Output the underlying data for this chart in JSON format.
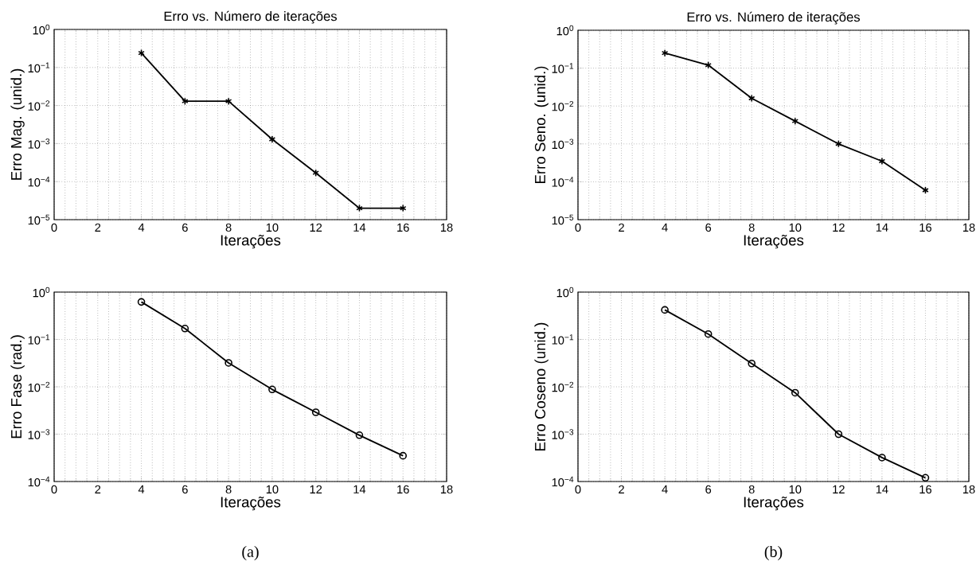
{
  "chart_data": [
    {
      "type": "line",
      "title": "Erro vs. Número de iterações",
      "xlabel": "Iterações",
      "ylabel": "Erro Mag. (unid.)",
      "x": [
        4,
        6,
        8,
        10,
        12,
        14,
        16
      ],
      "log": "y",
      "grid": true,
      "marker": "cross",
      "line_style": "solid",
      "series": [
        {
          "color": "#000000",
          "values": [
            0.24,
            0.013,
            0.013,
            0.0013,
            0.00017,
            2e-05,
            2e-05
          ]
        }
      ],
      "xlim": [
        0,
        18
      ],
      "xticks": [
        0,
        2,
        4,
        6,
        8,
        10,
        12,
        14,
        16,
        18
      ],
      "ylim": [
        1e-05,
        1
      ],
      "yticks": [
        {
          "value": 1e-05,
          "label": "10$^{−5}$"
        },
        {
          "value": 0.0001,
          "label": "10$^{−4}$"
        },
        {
          "value": 0.001,
          "label": "10$^{−3}$"
        },
        {
          "value": 0.01,
          "label": "10$^{−2}$"
        },
        {
          "value": 0.1,
          "label": "10$^{−1}$"
        },
        {
          "value": 1,
          "label": "10$^{0}$"
        }
      ]
    },
    {
      "type": "line",
      "title": "Erro vs. Número de iterações",
      "xlabel": "Iterações",
      "ylabel": "Erro Seno. (unid.)",
      "x": [
        4,
        6,
        8,
        10,
        12,
        14,
        16
      ],
      "log": "y",
      "grid": true,
      "marker": "cross",
      "line_style": "solid",
      "series": [
        {
          "color": "#000000",
          "values": [
            0.25,
            0.12,
            0.016,
            0.004,
            0.001,
            0.00035,
            6e-05
          ]
        }
      ],
      "xlim": [
        0,
        18
      ],
      "xticks": [
        0,
        2,
        4,
        6,
        8,
        10,
        12,
        14,
        16,
        18
      ],
      "ylim": [
        1e-05,
        1
      ],
      "yticks": [
        {
          "value": 1e-05,
          "label": "10$^{−5}$"
        },
        {
          "value": 0.0001,
          "label": "10$^{−4}$"
        },
        {
          "value": 0.001,
          "label": "10$^{−3}$"
        },
        {
          "value": 0.01,
          "label": "10$^{−2}$"
        },
        {
          "value": 0.1,
          "label": "10$^{−1}$"
        },
        {
          "value": 1,
          "label": "10$^{0}$"
        }
      ]
    },
    {
      "type": "line",
      "xlabel": "Iterações",
      "ylabel": "Erro Fase (rad.)",
      "x": [
        4,
        6,
        8,
        10,
        12,
        14,
        16
      ],
      "log": "y",
      "grid": true,
      "marker": "circle",
      "line_style": "solid",
      "series": [
        {
          "color": "#000000",
          "values": [
            0.62,
            0.17,
            0.032,
            0.0088,
            0.0029,
            0.00095,
            0.00035
          ]
        }
      ],
      "xlim": [
        0,
        18
      ],
      "xticks": [
        0,
        2,
        4,
        6,
        8,
        10,
        12,
        14,
        16,
        18
      ],
      "ylim": [
        0.0001,
        1
      ],
      "yticks": [
        {
          "value": 0.0001,
          "label": "10$^{−4}$"
        },
        {
          "value": 0.001,
          "label": "10$^{−3}$"
        },
        {
          "value": 0.01,
          "label": "10$^{−2}$"
        },
        {
          "value": 0.1,
          "label": "10$^{−1}$"
        },
        {
          "value": 1,
          "label": "10$^{0}$"
        }
      ],
      "annotations": [
        "(a)"
      ]
    },
    {
      "type": "line",
      "xlabel": "Iterações",
      "ylabel": "Erro Coseno (unid.)",
      "x": [
        4,
        6,
        8,
        10,
        12,
        14,
        16
      ],
      "log": "y",
      "grid": true,
      "marker": "circle",
      "line_style": "solid",
      "series": [
        {
          "color": "#000000",
          "values": [
            0.42,
            0.13,
            0.031,
            0.0075,
            0.001,
            0.00032,
            0.00012
          ]
        }
      ],
      "xlim": [
        0,
        18
      ],
      "xticks": [
        0,
        2,
        4,
        6,
        8,
        10,
        12,
        14,
        16,
        18
      ],
      "ylim": [
        0.0001,
        1
      ],
      "yticks": [
        {
          "value": 0.0001,
          "label": "10$^{−4}$"
        },
        {
          "value": 0.001,
          "label": "10$^{−3}$"
        },
        {
          "value": 0.01,
          "label": "10$^{−2}$"
        },
        {
          "value": 0.1,
          "label": "10$^{−1}$"
        },
        {
          "value": 1,
          "label": "10$^{0}$"
        }
      ],
      "annotations": [
        "(b)"
      ]
    }
  ]
}
